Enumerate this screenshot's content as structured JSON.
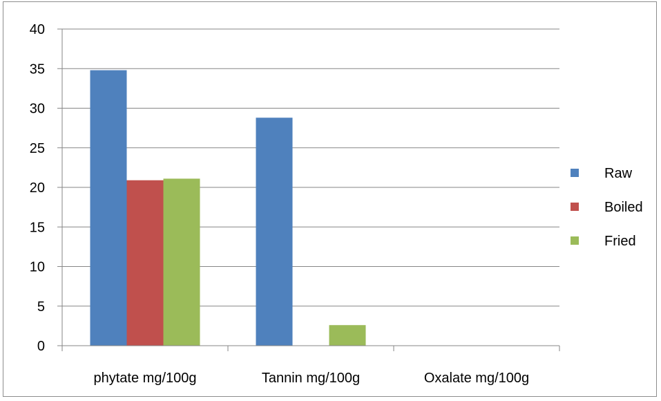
{
  "chart_data": {
    "type": "bar",
    "title": "",
    "xlabel": "",
    "ylabel": "",
    "categories": [
      "phytate mg/100g",
      "Tannin mg/100g",
      "Oxalate mg/100g"
    ],
    "series": [
      {
        "name": "Raw",
        "color": "#4F81BD",
        "values": [
          34.8,
          28.8,
          0
        ]
      },
      {
        "name": "Boiled",
        "color": "#C0504D",
        "values": [
          20.9,
          0,
          0
        ]
      },
      {
        "name": "Fried",
        "color": "#9BBB59",
        "values": [
          21.1,
          2.6,
          0
        ]
      }
    ],
    "ylim": [
      0,
      40
    ],
    "yticks": [
      "0",
      "5",
      "10",
      "15",
      "20",
      "25",
      "30",
      "35",
      "40"
    ],
    "grid": true,
    "legend_position": "right"
  }
}
